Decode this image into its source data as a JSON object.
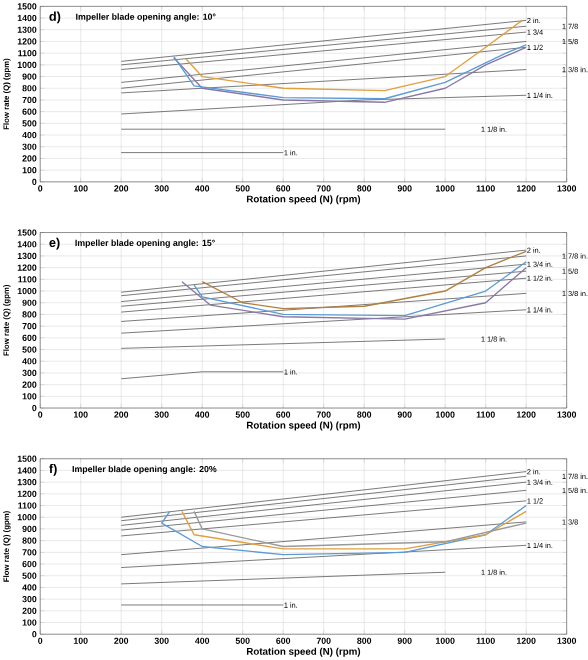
{
  "chart_data": [
    {
      "type": "line",
      "title": "d)",
      "subtitle": "Impeller blade opening angle: 10°",
      "xlabel": "Rotation speed (N) (rpm)",
      "ylabel": "Flow rate (Q) (gpm)",
      "xlim": [
        0,
        1300
      ],
      "ylim": [
        0,
        1500
      ],
      "xticks": [
        0,
        100,
        200,
        300,
        400,
        500,
        600,
        700,
        800,
        900,
        1000,
        1100,
        1200,
        1300
      ],
      "yticks": [
        0,
        100,
        200,
        300,
        400,
        500,
        600,
        700,
        800,
        900,
        1000,
        1100,
        1200,
        1300,
        1400,
        1500
      ],
      "grid": true,
      "series": [
        {
          "name": "1 in.",
          "color": "#555555",
          "x": [
            200,
            600
          ],
          "values": [
            250,
            250
          ]
        },
        {
          "name": "1 1/8 in.",
          "color": "#555555",
          "x": [
            200,
            1000
          ],
          "values": [
            450,
            450
          ]
        },
        {
          "name": "1 1/4 in.",
          "color": "#555555",
          "x": [
            200,
            800,
            1200
          ],
          "values": [
            580,
            700,
            740
          ]
        },
        {
          "name": "1 3/8 in.",
          "color": "#555555",
          "x": [
            200,
            1200
          ],
          "values": [
            760,
            960
          ]
        },
        {
          "name": "1 1/2",
          "color": "#555555",
          "x": [
            200,
            1200
          ],
          "values": [
            800,
            1150
          ]
        },
        {
          "name": "1 5/8",
          "color": "#555555",
          "x": [
            200,
            1200
          ],
          "values": [
            850,
            1200
          ]
        },
        {
          "name": "1 3/4",
          "color": "#555555",
          "x": [
            200,
            1200
          ],
          "values": [
            960,
            1280
          ]
        },
        {
          "name": "1 7/8",
          "color": "#555555",
          "x": [
            200,
            1200
          ],
          "values": [
            1000,
            1330
          ]
        },
        {
          "name": "2 in.",
          "color": "#555555",
          "x": [
            200,
            1200
          ],
          "values": [
            1030,
            1380
          ]
        },
        {
          "color": "#8878a8",
          "x": [
            330,
            400,
            600,
            850,
            1000,
            1100,
            1200
          ],
          "values": [
            1060,
            800,
            700,
            680,
            800,
            1000,
            1150
          ]
        },
        {
          "color": "#5b9bd5",
          "x": [
            330,
            380,
            600,
            850,
            1000,
            1150,
            1200
          ],
          "values": [
            1070,
            820,
            720,
            710,
            850,
            1100,
            1170
          ]
        },
        {
          "color": "#e0a040",
          "x": [
            360,
            400,
            600,
            850,
            1000,
            1100,
            1190
          ],
          "values": [
            1050,
            900,
            800,
            780,
            900,
            1150,
            1380
          ]
        }
      ]
    },
    {
      "type": "line",
      "title": "e)",
      "subtitle": "Impeller blade opening angle: 15°",
      "xlabel": "Rotation speed (N) (rpm)",
      "ylabel": "Flow rate (Q) (gpm)",
      "xlim": [
        0,
        1300
      ],
      "ylim": [
        0,
        1500
      ],
      "xticks": [
        0,
        100,
        200,
        300,
        400,
        500,
        600,
        700,
        800,
        900,
        1000,
        1100,
        1200,
        1300
      ],
      "yticks": [
        0,
        100,
        200,
        300,
        400,
        500,
        600,
        700,
        800,
        900,
        1000,
        1100,
        1200,
        1300,
        1400,
        1500
      ],
      "grid": true,
      "series": [
        {
          "name": "1 in.",
          "color": "#555555",
          "x": [
            200,
            400,
            600
          ],
          "values": [
            250,
            310,
            310
          ]
        },
        {
          "name": "1 1/8 in.",
          "color": "#555555",
          "x": [
            200,
            1000
          ],
          "values": [
            510,
            590
          ]
        },
        {
          "name": "1 1/4 in.",
          "color": "#555555",
          "x": [
            200,
            1200
          ],
          "values": [
            640,
            840
          ]
        },
        {
          "name": "1 3/8 in.",
          "color": "#555555",
          "x": [
            200,
            1200
          ],
          "values": [
            740,
            980
          ]
        },
        {
          "name": "1 1/2 in.",
          "color": "#555555",
          "x": [
            200,
            1200
          ],
          "values": [
            820,
            1110
          ]
        },
        {
          "name": "1 5/8",
          "color": "#555555",
          "x": [
            200,
            1200
          ],
          "values": [
            870,
            1170
          ]
        },
        {
          "name": "1 3/4 in.",
          "color": "#555555",
          "x": [
            200,
            1200
          ],
          "values": [
            910,
            1230
          ]
        },
        {
          "name": "1 7/8 in.",
          "color": "#555555",
          "x": [
            200,
            1200
          ],
          "values": [
            960,
            1300
          ]
        },
        {
          "name": "2 in.",
          "color": "#555555",
          "x": [
            200,
            1200
          ],
          "values": [
            990,
            1350
          ]
        },
        {
          "color": "#8878a8",
          "x": [
            350,
            420,
            600,
            900,
            1100,
            1200
          ],
          "values": [
            1080,
            880,
            780,
            760,
            900,
            1200
          ]
        },
        {
          "color": "#5b9bd5",
          "x": [
            380,
            400,
            600,
            900,
            1100,
            1200
          ],
          "values": [
            1050,
            950,
            800,
            790,
            1000,
            1250
          ]
        },
        {
          "color": "#b08040",
          "x": [
            400,
            500,
            600,
            800,
            1000,
            1100,
            1200
          ],
          "values": [
            1080,
            900,
            850,
            870,
            1000,
            1200,
            1340
          ]
        }
      ]
    },
    {
      "type": "line",
      "title": "f)",
      "subtitle": "Impeller blade opening angle: 20%",
      "xlabel": "Rotation  speed (N) (rpm)",
      "ylabel": "Flow rate (Q) (gpm)",
      "xlim": [
        0,
        1300
      ],
      "ylim": [
        0,
        1500
      ],
      "xticks": [
        0,
        100,
        200,
        300,
        400,
        500,
        600,
        700,
        800,
        900,
        1000,
        1100,
        1200,
        1300
      ],
      "yticks": [
        0,
        100,
        200,
        300,
        400,
        500,
        600,
        700,
        800,
        900,
        1000,
        1100,
        1200,
        1300,
        1400,
        1500
      ],
      "grid": true,
      "series": [
        {
          "name": "1 in.",
          "color": "#555555",
          "x": [
            200,
            600
          ],
          "values": [
            250,
            250
          ]
        },
        {
          "name": "1 1/8 in.",
          "color": "#555555",
          "x": [
            200,
            1000
          ],
          "values": [
            430,
            530
          ]
        },
        {
          "name": "1 1/4 in.",
          "color": "#555555",
          "x": [
            200,
            1200
          ],
          "values": [
            570,
            760
          ]
        },
        {
          "name": "1 3/8",
          "color": "#555555",
          "x": [
            200,
            1200
          ],
          "values": [
            680,
            960
          ]
        },
        {
          "name": "1 1/2",
          "color": "#555555",
          "x": [
            200,
            1200
          ],
          "values": [
            840,
            1140
          ]
        },
        {
          "name": "1 5/8 in.",
          "color": "#555555",
          "x": [
            200,
            1200
          ],
          "values": [
            890,
            1230
          ]
        },
        {
          "name": "1 3/4 in.",
          "color": "#555555",
          "x": [
            200,
            1200
          ],
          "values": [
            930,
            1300
          ]
        },
        {
          "name": "1 7/8 in.",
          "color": "#555555",
          "x": [
            200,
            1200
          ],
          "values": [
            970,
            1350
          ]
        },
        {
          "name": "2 in.",
          "color": "#555555",
          "x": [
            200,
            1200
          ],
          "values": [
            1000,
            1390
          ]
        },
        {
          "color": "#5b9bd5",
          "x": [
            320,
            300,
            400,
            600,
            900,
            1100,
            1200
          ],
          "values": [
            1050,
            950,
            750,
            680,
            700,
            850,
            1100
          ]
        },
        {
          "color": "#e0a040",
          "x": [
            350,
            380,
            600,
            900,
            1100,
            1200
          ],
          "values": [
            1050,
            850,
            730,
            730,
            850,
            1050
          ]
        },
        {
          "color": "#999999",
          "x": [
            380,
            400,
            600,
            1000,
            1200
          ],
          "values": [
            1050,
            900,
            750,
            790,
            950
          ]
        }
      ]
    }
  ]
}
